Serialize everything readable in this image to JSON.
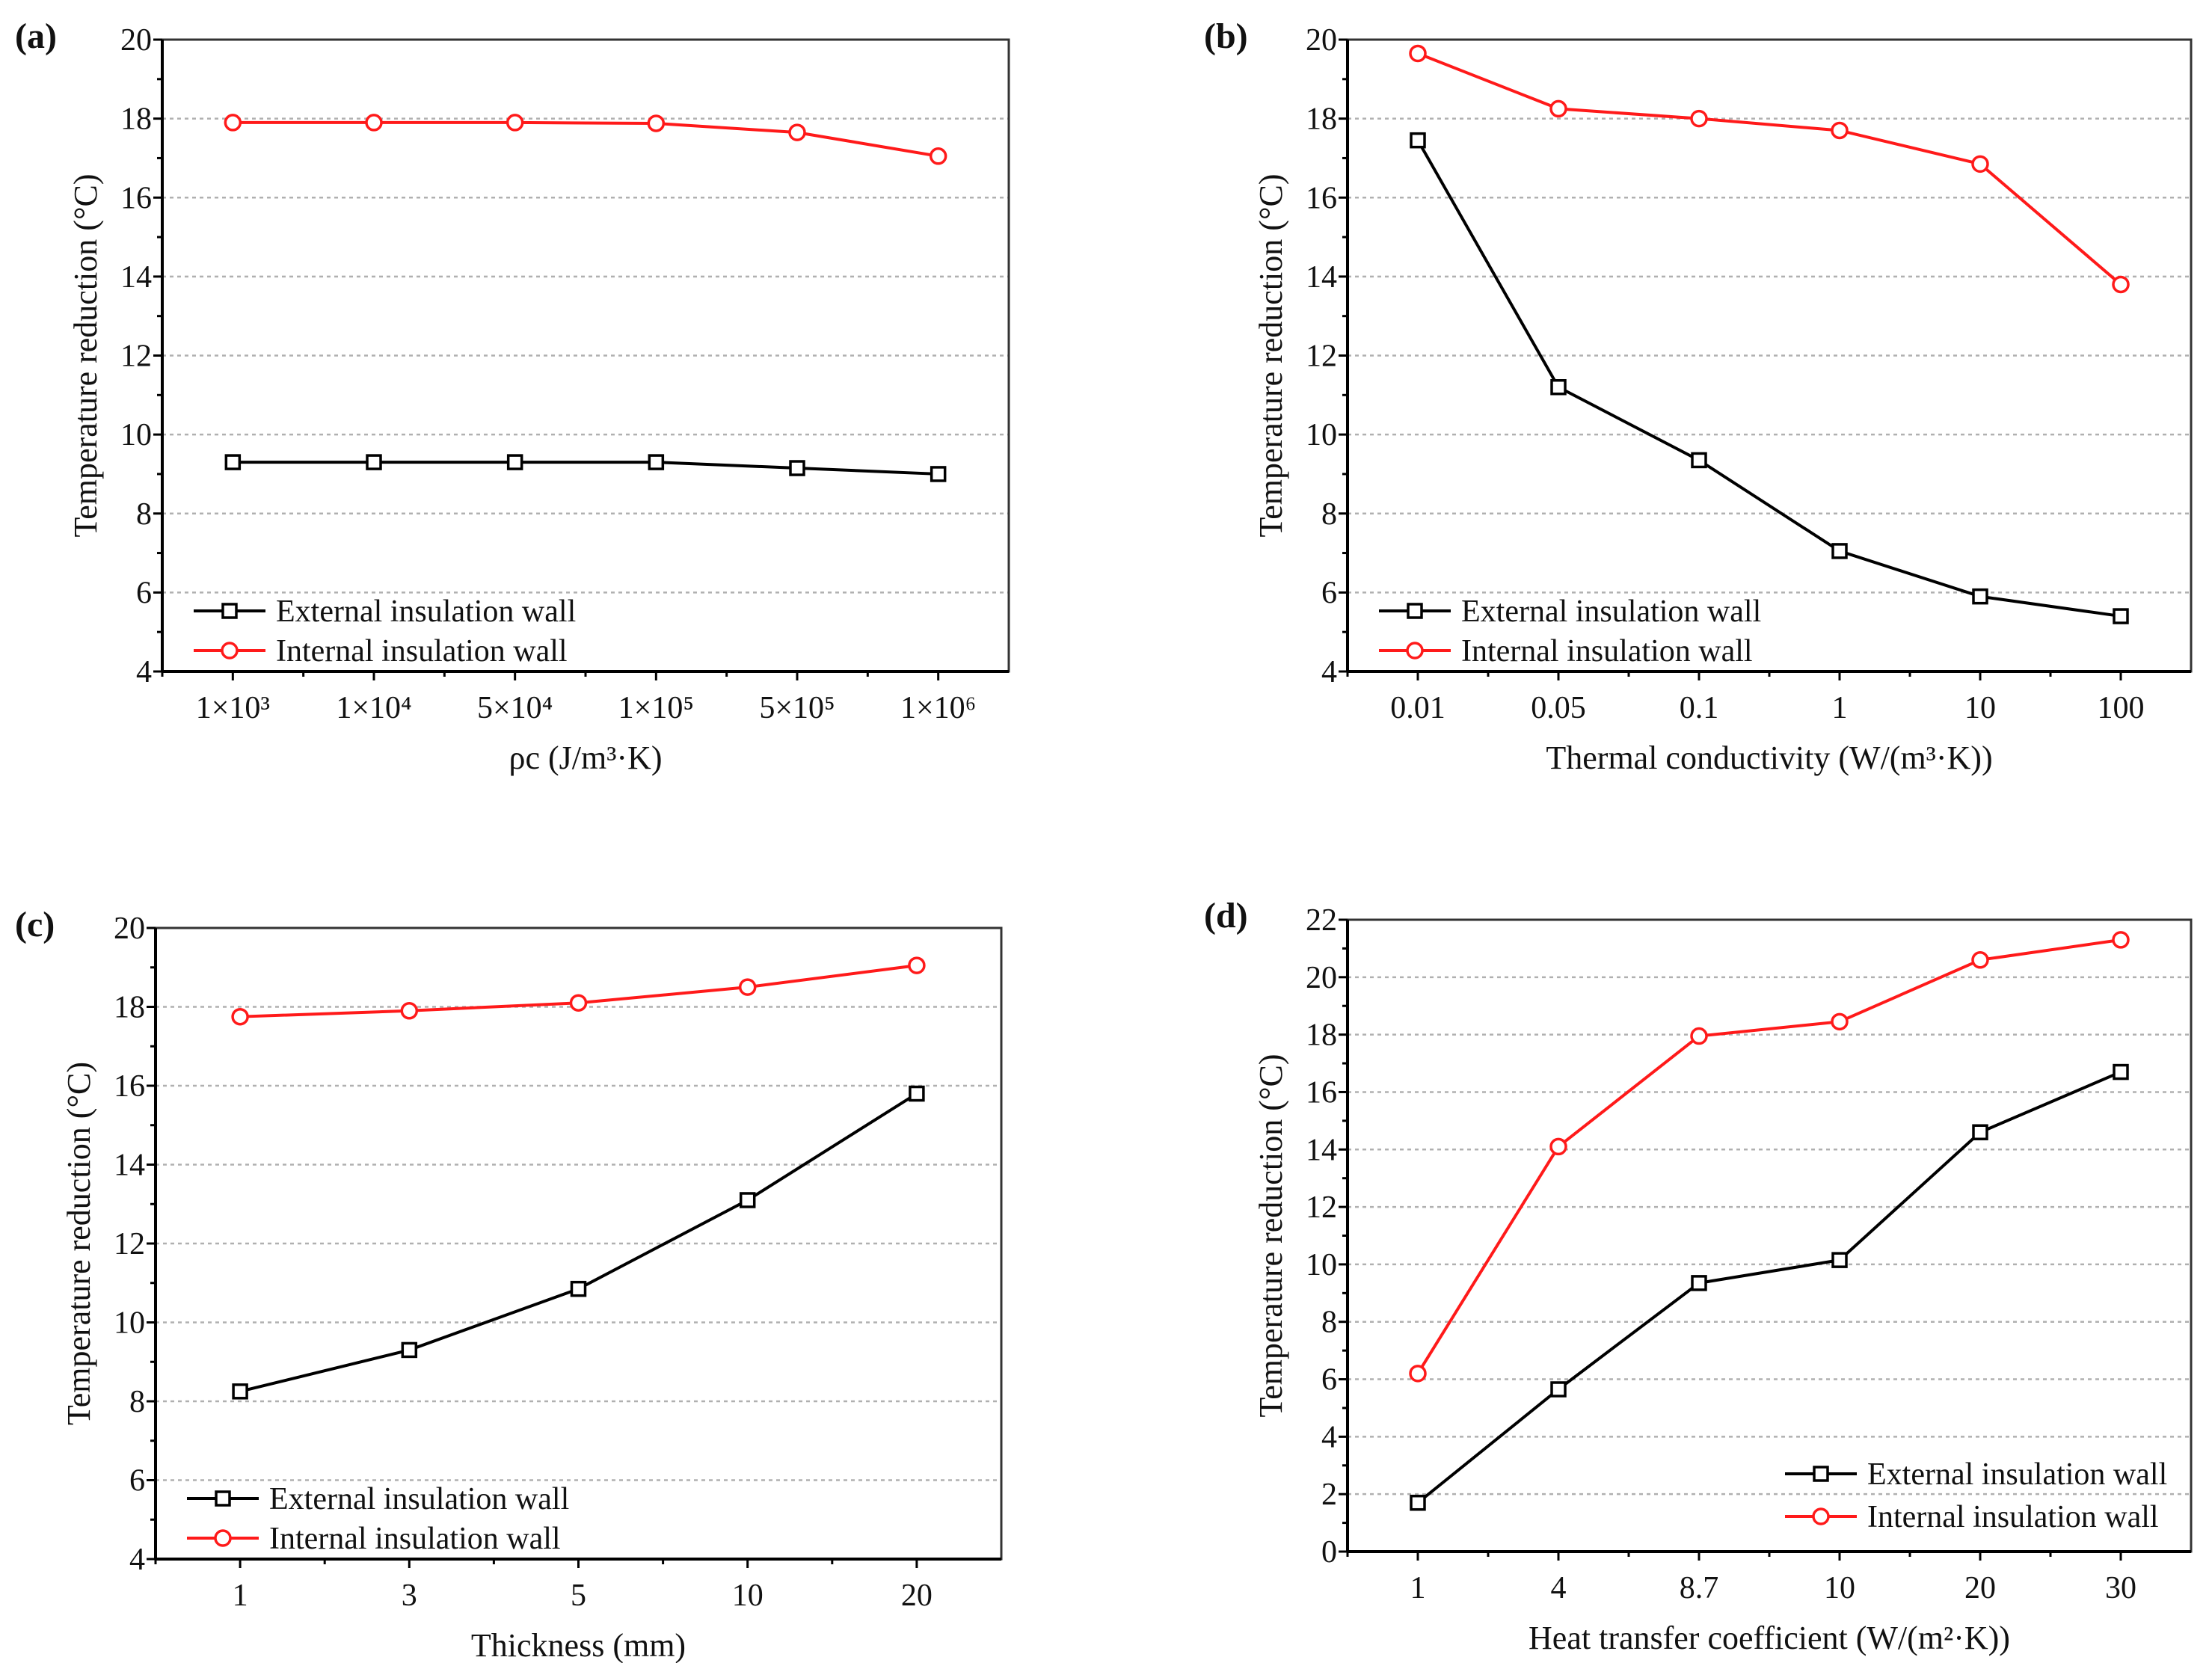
{
  "colors": {
    "external": "#000000",
    "internal": "#ff1a1a",
    "grid": "#b0b0b0"
  },
  "legend": [
    "External insulation wall",
    "Internal insulation wall"
  ],
  "chart_data": [
    {
      "panel": "(a)",
      "type": "line",
      "categories": [
        "1×10³",
        "1×10⁴",
        "5×10⁴",
        "1×10⁵",
        "5×10⁵",
        "1×10⁶"
      ],
      "xlabel": "ρc (J/m³·K)",
      "ylabel": "Temperature reduction (°C)",
      "ylim": [
        4,
        20
      ],
      "yticks": [
        "4",
        "6",
        "8",
        "10",
        "12",
        "14",
        "16",
        "18",
        "20"
      ],
      "ystep": 2,
      "grid": true,
      "legend_position": "bottom-left",
      "series": [
        {
          "name": "External insulation wall",
          "marker": "square",
          "values": [
            9.3,
            9.3,
            9.3,
            9.3,
            9.15,
            9.0
          ]
        },
        {
          "name": "Internal insulation wall",
          "marker": "circle",
          "values": [
            17.9,
            17.9,
            17.9,
            17.88,
            17.65,
            17.05
          ]
        }
      ]
    },
    {
      "panel": "(b)",
      "type": "line",
      "categories": [
        "0.01",
        "0.05",
        "0.1",
        "1",
        "10",
        "100"
      ],
      "xlabel": "Thermal conductivity (W/(m³·K))",
      "ylabel": "Temperature reduction (°C)",
      "ylim": [
        4,
        20
      ],
      "yticks": [
        "4",
        "6",
        "8",
        "10",
        "12",
        "14",
        "16",
        "18",
        "20"
      ],
      "ystep": 2,
      "grid": true,
      "legend_position": "bottom-left",
      "series": [
        {
          "name": "External insulation wall",
          "marker": "square",
          "values": [
            17.45,
            11.2,
            9.35,
            7.05,
            5.9,
            5.4
          ]
        },
        {
          "name": "Internal insulation wall",
          "marker": "circle",
          "values": [
            19.65,
            18.25,
            18.0,
            17.7,
            16.85,
            13.8
          ]
        }
      ]
    },
    {
      "panel": "(c)",
      "type": "line",
      "categories": [
        "1",
        "3",
        "5",
        "10",
        "20"
      ],
      "xlabel": "Thickness (mm)",
      "ylabel": "Temperature reduction (°C)",
      "ylim": [
        4,
        20
      ],
      "yticks": [
        "4",
        "6",
        "8",
        "10",
        "12",
        "14",
        "16",
        "18",
        "20"
      ],
      "ystep": 2,
      "grid": true,
      "legend_position": "bottom-left",
      "series": [
        {
          "name": "External insulation wall",
          "marker": "square",
          "values": [
            8.25,
            9.3,
            10.85,
            13.1,
            15.8
          ]
        },
        {
          "name": "Internal insulation wall",
          "marker": "circle",
          "values": [
            17.75,
            17.9,
            18.1,
            18.5,
            19.05
          ]
        }
      ]
    },
    {
      "panel": "(d)",
      "type": "line",
      "categories": [
        "1",
        "4",
        "8.7",
        "10",
        "20",
        "30"
      ],
      "xlabel": "Heat transfer coefficient (W/(m²·K))",
      "ylabel": "Temperature reduction (°C)",
      "ylim": [
        0,
        22
      ],
      "yticks": [
        "0",
        "2",
        "4",
        "6",
        "8",
        "10",
        "12",
        "14",
        "16",
        "18",
        "20",
        "22"
      ],
      "ystep": 2,
      "grid": true,
      "legend_position": "bottom-right",
      "series": [
        {
          "name": "External insulation wall",
          "marker": "square",
          "values": [
            1.7,
            5.65,
            9.35,
            10.15,
            14.6,
            16.7
          ]
        },
        {
          "name": "Internal insulation wall",
          "marker": "circle",
          "values": [
            6.2,
            14.1,
            17.95,
            18.45,
            20.6,
            21.3
          ]
        }
      ]
    }
  ]
}
